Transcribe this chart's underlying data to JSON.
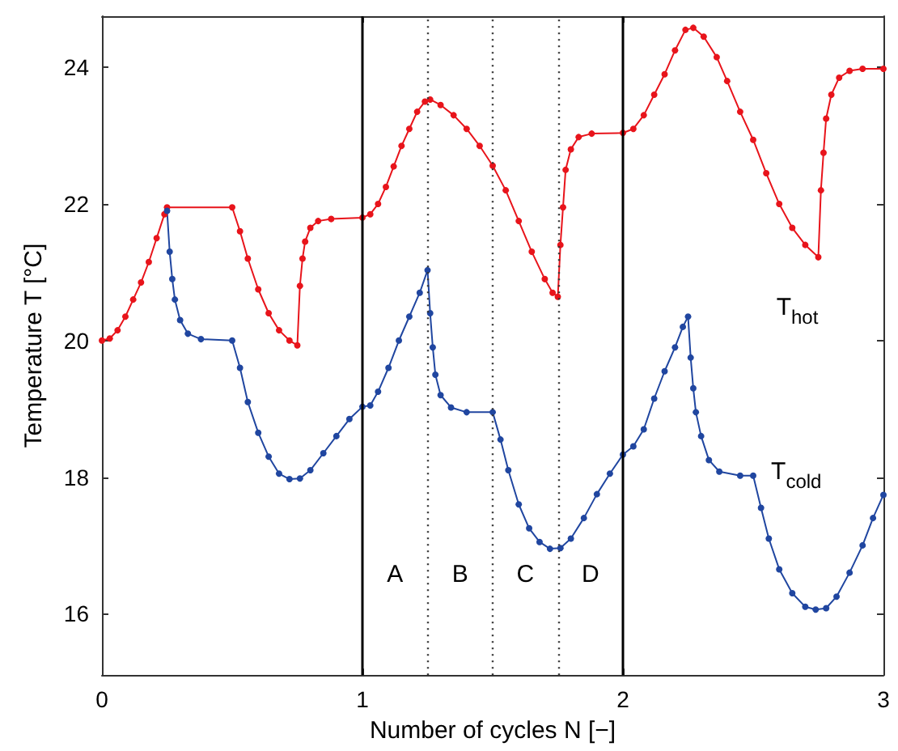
{
  "chart_data": {
    "type": "line",
    "xlabel": "Number of cycles N [−]",
    "ylabel": "Temperature T [°C]",
    "xlim": [
      0,
      3
    ],
    "xticks": [
      0,
      1,
      2,
      3
    ],
    "ylim": [
      15.1,
      24.75
    ],
    "yticks": [
      16,
      18,
      20,
      22,
      24
    ],
    "grid": false,
    "legend": false,
    "marker": "circle",
    "line_style": "solid",
    "series": [
      {
        "name": "T$_{hot}$",
        "color": "#e8141b",
        "x": [
          0,
          0.03,
          0.06,
          0.09,
          0.12,
          0.15,
          0.18,
          0.21,
          0.24,
          0.25,
          0.5,
          0.53,
          0.56,
          0.6,
          0.64,
          0.68,
          0.72,
          0.75,
          0.76,
          0.77,
          0.78,
          0.8,
          0.83,
          0.88,
          1.0,
          1.03,
          1.06,
          1.09,
          1.12,
          1.15,
          1.18,
          1.21,
          1.24,
          1.26,
          1.3,
          1.35,
          1.4,
          1.45,
          1.5,
          1.55,
          1.6,
          1.65,
          1.7,
          1.73,
          1.75,
          1.76,
          1.77,
          1.78,
          1.8,
          1.83,
          1.88,
          2.0,
          2.04,
          2.08,
          2.12,
          2.16,
          2.2,
          2.24,
          2.27,
          2.31,
          2.36,
          2.4,
          2.45,
          2.5,
          2.55,
          2.6,
          2.65,
          2.7,
          2.75,
          2.76,
          2.77,
          2.78,
          2.8,
          2.83,
          2.87,
          2.92,
          3.0
        ],
        "values": [
          20.0,
          20.03,
          20.15,
          20.35,
          20.6,
          20.85,
          21.15,
          21.5,
          21.85,
          21.95,
          21.95,
          21.6,
          21.2,
          20.75,
          20.4,
          20.15,
          20.0,
          19.93,
          20.8,
          21.2,
          21.45,
          21.65,
          21.75,
          21.78,
          21.8,
          21.85,
          22.0,
          22.25,
          22.55,
          22.85,
          23.1,
          23.35,
          23.5,
          23.53,
          23.45,
          23.3,
          23.1,
          22.85,
          22.56,
          22.2,
          21.75,
          21.3,
          20.9,
          20.7,
          20.64,
          21.4,
          21.95,
          22.5,
          22.8,
          22.98,
          23.03,
          23.04,
          23.1,
          23.3,
          23.6,
          23.9,
          24.25,
          24.55,
          24.58,
          24.45,
          24.15,
          23.8,
          23.35,
          22.94,
          22.45,
          22.0,
          21.65,
          21.4,
          21.22,
          22.2,
          22.75,
          23.25,
          23.6,
          23.85,
          23.95,
          23.98,
          23.98
        ]
      },
      {
        "name": "T$_{cold}$",
        "color": "#2046a0",
        "x": [
          0.25,
          0.26,
          0.27,
          0.28,
          0.3,
          0.33,
          0.38,
          0.5,
          0.53,
          0.56,
          0.6,
          0.64,
          0.68,
          0.72,
          0.76,
          0.8,
          0.85,
          0.9,
          0.95,
          1.0,
          1.03,
          1.06,
          1.1,
          1.14,
          1.18,
          1.22,
          1.25,
          1.26,
          1.27,
          1.28,
          1.3,
          1.34,
          1.4,
          1.5,
          1.53,
          1.56,
          1.6,
          1.64,
          1.68,
          1.72,
          1.76,
          1.8,
          1.85,
          1.9,
          1.95,
          2.0,
          2.04,
          2.08,
          2.12,
          2.16,
          2.2,
          2.23,
          2.25,
          2.26,
          2.27,
          2.28,
          2.3,
          2.33,
          2.37,
          2.45,
          2.5,
          2.53,
          2.56,
          2.6,
          2.65,
          2.7,
          2.74,
          2.78,
          2.82,
          2.87,
          2.92,
          2.96,
          3.0
        ],
        "values": [
          21.9,
          21.3,
          20.9,
          20.6,
          20.3,
          20.1,
          20.02,
          20.0,
          19.6,
          19.1,
          18.65,
          18.3,
          18.05,
          17.97,
          17.98,
          18.1,
          18.35,
          18.6,
          18.85,
          19.03,
          19.05,
          19.25,
          19.6,
          20.0,
          20.35,
          20.7,
          21.03,
          20.4,
          19.9,
          19.5,
          19.2,
          19.02,
          18.95,
          18.95,
          18.55,
          18.1,
          17.6,
          17.25,
          17.05,
          16.95,
          16.96,
          17.1,
          17.4,
          17.75,
          18.05,
          18.33,
          18.45,
          18.7,
          19.15,
          19.55,
          19.9,
          20.2,
          20.35,
          19.75,
          19.3,
          18.95,
          18.6,
          18.25,
          18.08,
          18.02,
          18.02,
          17.55,
          17.1,
          16.65,
          16.3,
          16.1,
          16.06,
          16.08,
          16.25,
          16.6,
          17.0,
          17.4,
          17.74
        ]
      }
    ],
    "ref_lines": [
      {
        "axis": "x",
        "value": 1,
        "color": "#000000",
        "line_style": "solid"
      },
      {
        "axis": "x",
        "value": 2,
        "color": "#000000",
        "line_style": "solid"
      },
      {
        "axis": "x",
        "value": 1.25,
        "color": "#333333",
        "line_style": "dotted"
      },
      {
        "axis": "x",
        "value": 1.5,
        "color": "#333333",
        "line_style": "dotted"
      },
      {
        "axis": "x",
        "value": 1.75,
        "color": "#333333",
        "line_style": "dotted"
      }
    ],
    "annotations": [
      "A",
      "B",
      "C",
      "D"
    ]
  }
}
